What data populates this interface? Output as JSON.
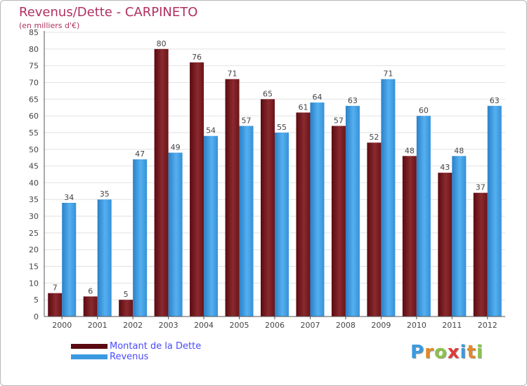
{
  "header": {
    "title": "Revenus/Dette - CARPINETO",
    "subtitle": "(en milliers d'€)"
  },
  "chart_data": {
    "type": "bar",
    "title": "Revenus/Dette - CARPINETO",
    "subtitle": "(en milliers d'€)",
    "categories": [
      "2000",
      "2001",
      "2002",
      "2003",
      "2004",
      "2005",
      "2006",
      "2007",
      "2008",
      "2009",
      "2010",
      "2011",
      "2012"
    ],
    "series": [
      {
        "name": "Montant de la Dette",
        "color": "#7a1a1f",
        "values": [
          7,
          6,
          5,
          80,
          76,
          71,
          65,
          61,
          57,
          52,
          48,
          43,
          37
        ]
      },
      {
        "name": "Revenus",
        "color": "#3a9ae0",
        "values": [
          34,
          35,
          47,
          49,
          54,
          57,
          55,
          64,
          63,
          71,
          60,
          48,
          63
        ]
      }
    ],
    "ylim": [
      0,
      85
    ],
    "yticks": [
      0,
      5,
      10,
      15,
      20,
      25,
      30,
      35,
      40,
      45,
      50,
      55,
      60,
      65,
      70,
      75,
      80,
      85
    ],
    "grid": true,
    "legend_position": "bottom-left"
  },
  "legend": {
    "items": [
      {
        "label": "Montant de la Dette",
        "color": "#7a1a1f"
      },
      {
        "label": "Revenus",
        "color": "#3a9ae0"
      }
    ]
  },
  "brand": {
    "letters": [
      "P",
      "r",
      "o",
      "x",
      "i",
      "t",
      "i"
    ],
    "colors": [
      "#3a9ae0",
      "#e08a2a",
      "#8bc34a",
      "#e03a3a",
      "#3a9ae0",
      "#e08a2a",
      "#8bc34a"
    ]
  }
}
